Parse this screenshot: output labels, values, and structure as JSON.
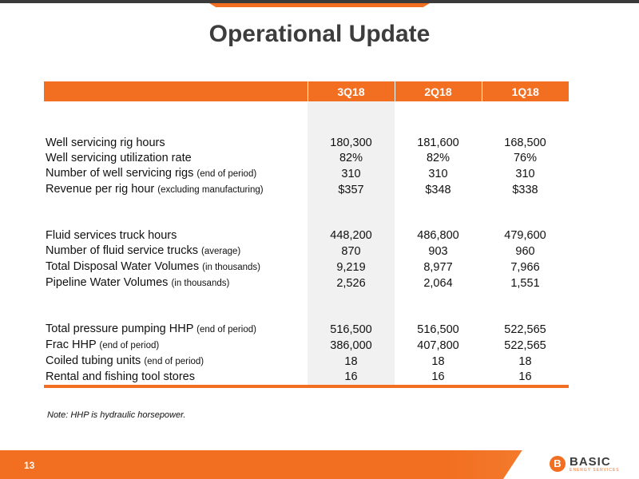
{
  "title": "Operational Update",
  "columns": [
    "3Q18",
    "2Q18",
    "1Q18"
  ],
  "groups": [
    {
      "rows": [
        {
          "label": "Well servicing rig hours",
          "qualifier": "",
          "values": [
            "180,300",
            "181,600",
            "168,500"
          ]
        },
        {
          "label": "Well servicing utilization rate",
          "qualifier": "",
          "values": [
            "82%",
            "82%",
            "76%"
          ]
        },
        {
          "label": "Number of well servicing rigs ",
          "qualifier": "(end of period)",
          "values": [
            "310",
            "310",
            "310"
          ]
        },
        {
          "label": "Revenue per rig hour ",
          "qualifier": "(excluding manufacturing)",
          "values": [
            "$357",
            "$348",
            "$338"
          ]
        }
      ]
    },
    {
      "rows": [
        {
          "label": "Fluid services truck hours",
          "qualifier": "",
          "values": [
            "448,200",
            "486,800",
            "479,600"
          ]
        },
        {
          "label": "Number of fluid service trucks ",
          "qualifier": "(average)",
          "values": [
            "870",
            "903",
            "960"
          ]
        },
        {
          "label": "Total Disposal Water Volumes ",
          "qualifier": "(in thousands)",
          "values": [
            "9,219",
            "8,977",
            "7,966"
          ]
        },
        {
          "label": "Pipeline Water Volumes ",
          "qualifier": "(in thousands)",
          "values": [
            "2,526",
            "2,064",
            "1,551"
          ]
        }
      ]
    },
    {
      "rows": [
        {
          "label": "Total pressure pumping HHP ",
          "qualifier": "(end of period)",
          "values": [
            "516,500",
            "516,500",
            "522,565"
          ]
        },
        {
          "label": "Frac HHP ",
          "qualifier": "(end of period)",
          "values": [
            "386,000",
            "407,800",
            "522,565"
          ]
        },
        {
          "label": "Coiled tubing units ",
          "qualifier": "(end of period)",
          "values": [
            "18",
            "18",
            "18"
          ]
        },
        {
          "label": "Rental and fishing tool stores",
          "qualifier": "",
          "values": [
            "16",
            "16",
            "16"
          ]
        }
      ]
    }
  ],
  "note": "Note:  HHP is hydraulic horsepower.",
  "page_number": "13",
  "logo": {
    "word": "BASIC",
    "tagline": "ENERGY SERVICES",
    "mark": "B"
  },
  "colors": {
    "accent": "#f26f21",
    "title": "#3d3d3d",
    "shade": "#f1f1f1"
  }
}
